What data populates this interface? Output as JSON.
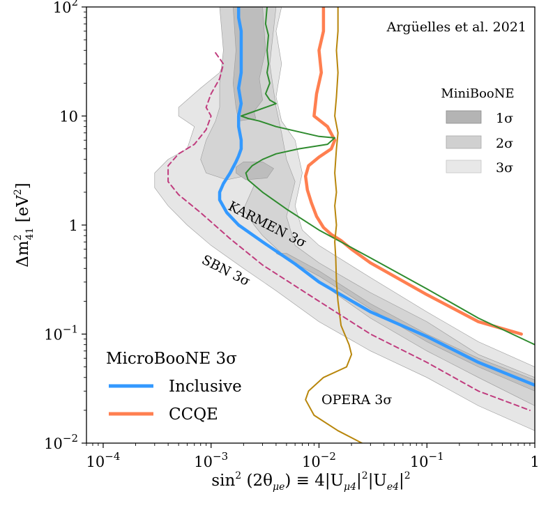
{
  "chart_data": {
    "type": "line",
    "credit": "Argüelles et al. 2021",
    "xlabel": "sin²(2θ_μe) ≡ 4|U_μ4|²|U_e4|²",
    "ylabel": "Δm²₄₁ [eV²]",
    "xscale": "log",
    "yscale": "log",
    "xlim": [
      7e-05,
      1
    ],
    "ylim": [
      0.01,
      100
    ],
    "x_ticks": [
      {
        "value": 0.0001,
        "base": "10",
        "exp": "−4"
      },
      {
        "value": 0.001,
        "base": "10",
        "exp": "−3"
      },
      {
        "value": 0.01,
        "base": "10",
        "exp": "−2"
      },
      {
        "value": 0.1,
        "base": "10",
        "exp": "−1"
      },
      {
        "value": 1,
        "base": "1",
        "exp": ""
      }
    ],
    "y_ticks": [
      {
        "value": 0.01,
        "base": "10",
        "exp": "−2"
      },
      {
        "value": 0.1,
        "base": "10",
        "exp": "−1"
      },
      {
        "value": 1,
        "base": "1",
        "exp": ""
      },
      {
        "value": 10,
        "base": "10",
        "exp": ""
      },
      {
        "value": 100,
        "base": "10",
        "exp": "2"
      }
    ],
    "grid": false,
    "legends": {
      "miniboone": {
        "title": "MiniBooNE",
        "placement": "upper-right",
        "entries": [
          {
            "label": "1σ",
            "color": "#b4b4b4"
          },
          {
            "label": "2σ",
            "color": "#d0d0d0"
          },
          {
            "label": "3σ",
            "color": "#e8e8e8"
          }
        ]
      },
      "microboone": {
        "title": "MicroBooNE 3σ",
        "placement": "lower-left",
        "entries": [
          {
            "label": "Inclusive",
            "color": "#3399ff"
          },
          {
            "label": "CCQE",
            "color": "#ff7f50"
          }
        ]
      }
    },
    "regions": [
      {
        "name": "MiniBooNE 3σ",
        "color": "#e6e6e6",
        "points": [
          [
            0.0018,
            100
          ],
          [
            0.0018,
            80
          ],
          [
            0.0016,
            50
          ],
          [
            0.0012,
            25
          ],
          [
            0.0008,
            18
          ],
          [
            0.0005,
            12
          ],
          [
            0.0005,
            10
          ],
          [
            0.0007,
            8
          ],
          [
            0.0006,
            5
          ],
          [
            0.0004,
            4
          ],
          [
            0.0003,
            3
          ],
          [
            0.0003,
            2.2
          ],
          [
            0.0004,
            1.5
          ],
          [
            0.0006,
            1.0
          ],
          [
            0.001,
            0.65
          ],
          [
            0.002,
            0.4
          ],
          [
            0.004,
            0.25
          ],
          [
            0.01,
            0.13
          ],
          [
            0.03,
            0.07
          ],
          [
            0.1,
            0.04
          ],
          [
            0.3,
            0.022
          ],
          [
            1,
            0.013
          ],
          [
            1,
            0.05
          ],
          [
            0.3,
            0.085
          ],
          [
            0.1,
            0.16
          ],
          [
            0.03,
            0.33
          ],
          [
            0.01,
            0.65
          ],
          [
            0.007,
            0.9
          ],
          [
            0.006,
            1.5
          ],
          [
            0.007,
            3
          ],
          [
            0.006,
            6
          ],
          [
            0.0045,
            9
          ],
          [
            0.004,
            15
          ],
          [
            0.0045,
            30
          ],
          [
            0.004,
            60
          ],
          [
            0.0045,
            100
          ]
        ]
      },
      {
        "name": "MiniBooNE 2σ",
        "color": "#d4d4d4",
        "points": [
          [
            0.0012,
            100
          ],
          [
            0.0013,
            40
          ],
          [
            0.0012,
            20
          ],
          [
            0.0012,
            12
          ],
          [
            0.0011,
            9
          ],
          [
            0.0009,
            6
          ],
          [
            0.0008,
            4
          ],
          [
            0.0009,
            3
          ],
          [
            0.0014,
            2.6
          ],
          [
            0.002,
            2.8
          ],
          [
            0.0025,
            2.3
          ],
          [
            0.002,
            1.4
          ],
          [
            0.0025,
            1.0
          ],
          [
            0.003,
            0.8
          ],
          [
            0.005,
            0.5
          ],
          [
            0.01,
            0.3
          ],
          [
            0.03,
            0.14
          ],
          [
            0.1,
            0.07
          ],
          [
            0.3,
            0.04
          ],
          [
            1,
            0.022
          ],
          [
            1,
            0.04
          ],
          [
            0.3,
            0.065
          ],
          [
            0.1,
            0.13
          ],
          [
            0.03,
            0.24
          ],
          [
            0.01,
            0.45
          ],
          [
            0.006,
            0.65
          ],
          [
            0.005,
            1.2
          ],
          [
            0.006,
            2.5
          ],
          [
            0.005,
            4
          ],
          [
            0.0045,
            7
          ],
          [
            0.004,
            12
          ],
          [
            0.0035,
            30
          ],
          [
            0.004,
            100
          ]
        ]
      },
      {
        "name": "MiniBooNE 1σ",
        "color": "#bdbdbd",
        "points": [
          [
            0.0016,
            100
          ],
          [
            0.0017,
            40
          ],
          [
            0.0016,
            20
          ],
          [
            0.0017,
            12
          ],
          [
            0.0018,
            9
          ],
          [
            0.0026,
            9.5
          ],
          [
            0.0025,
            11
          ],
          [
            0.003,
            14
          ],
          [
            0.0028,
            22
          ],
          [
            0.0032,
            40
          ],
          [
            0.003,
            100
          ]
        ]
      },
      {
        "name": "MiniBooNE 1σ island",
        "color": "#bdbdbd",
        "points": [
          [
            0.0017,
            3.0
          ],
          [
            0.0021,
            2.6
          ],
          [
            0.0033,
            2.7
          ],
          [
            0.0038,
            3.3
          ],
          [
            0.003,
            3.8
          ],
          [
            0.002,
            3.8
          ],
          [
            0.0017,
            3.4
          ]
        ]
      },
      {
        "name": "MiniBooNE 1σ band",
        "color": "#c0c0c0",
        "points": [
          [
            0.004,
            0.55
          ],
          [
            0.01,
            0.34
          ],
          [
            0.03,
            0.17
          ],
          [
            0.1,
            0.085
          ],
          [
            0.3,
            0.05
          ],
          [
            1,
            0.03
          ],
          [
            1,
            0.038
          ],
          [
            0.3,
            0.06
          ],
          [
            0.1,
            0.1
          ],
          [
            0.03,
            0.19
          ],
          [
            0.01,
            0.38
          ],
          [
            0.005,
            0.55
          ]
        ]
      }
    ],
    "series": [
      {
        "name": "Inclusive",
        "color": "#3399ff",
        "style": "solid",
        "x": [
          0.0018,
          0.0018,
          0.0019,
          0.0019,
          0.0019,
          0.0018,
          0.0019,
          0.0018,
          0.0018,
          0.0019,
          0.0019,
          0.0018,
          0.0017,
          0.0015,
          0.0013,
          0.0012,
          0.0012,
          0.0014,
          0.0018,
          0.003,
          0.006,
          0.01,
          0.03,
          0.1,
          0.3,
          1
        ],
        "y": [
          100,
          80,
          60,
          40,
          25,
          18,
          13,
          10,
          8,
          6,
          5,
          4.3,
          3.8,
          3.0,
          2.4,
          2.0,
          1.7,
          1.3,
          1.0,
          0.7,
          0.44,
          0.3,
          0.16,
          0.095,
          0.055,
          0.034
        ]
      },
      {
        "name": "CCQE",
        "color": "#ff7f50",
        "style": "solid",
        "x": [
          0.011,
          0.011,
          0.01,
          0.0105,
          0.0095,
          0.009,
          0.012,
          0.014,
          0.013,
          0.01,
          0.008,
          0.0075,
          0.0078,
          0.0085,
          0.0095,
          0.011,
          0.013,
          0.016,
          0.02,
          0.03,
          0.1,
          0.3,
          0.75
        ],
        "y": [
          100,
          60,
          40,
          25,
          16,
          10,
          8,
          6,
          5,
          4.2,
          3.5,
          2.8,
          2.1,
          1.6,
          1.2,
          0.95,
          0.82,
          0.72,
          0.6,
          0.45,
          0.23,
          0.13,
          0.1
        ]
      },
      {
        "name": "KARMEN 3σ",
        "color": "#2e8b2e",
        "style": "solid",
        "x": [
          0.0033,
          0.0032,
          0.0034,
          0.0033,
          0.0034,
          0.0033,
          0.0035,
          0.0032,
          0.0035,
          0.004,
          0.0032,
          0.0025,
          0.0019,
          0.0022,
          0.0028,
          0.004,
          0.01,
          0.014,
          0.012,
          0.0065,
          0.004,
          0.003,
          0.0024,
          0.0021,
          0.0022,
          0.003,
          0.005,
          0.01,
          0.03,
          0.1,
          0.3,
          1
        ],
        "y": [
          100,
          70,
          55,
          40,
          30,
          25,
          20,
          16,
          14,
          13,
          12,
          11,
          10,
          9.5,
          9,
          8,
          6.5,
          6.3,
          5.5,
          5,
          4.5,
          4,
          3.5,
          3.0,
          2.6,
          2.0,
          1.4,
          0.9,
          0.5,
          0.26,
          0.14,
          0.08
        ]
      },
      {
        "name": "OPERA 3σ",
        "color": "#b8860b",
        "style": "solid",
        "x": [
          0.015,
          0.015,
          0.0145,
          0.015,
          0.0145,
          0.014,
          0.015,
          0.0145,
          0.014,
          0.0145,
          0.014,
          0.0145,
          0.014,
          0.0143,
          0.0145,
          0.015,
          0.016,
          0.019,
          0.02,
          0.018,
          0.011,
          0.008,
          0.0075,
          0.009,
          0.015,
          0.025
        ],
        "y": [
          100,
          60,
          40,
          25,
          15,
          10,
          7,
          5,
          3,
          2,
          1.5,
          1,
          0.7,
          0.5,
          0.3,
          0.2,
          0.12,
          0.08,
          0.065,
          0.05,
          0.04,
          0.03,
          0.025,
          0.018,
          0.013,
          0.01
        ]
      },
      {
        "name": "SBN 3σ",
        "color": "#c03c7e",
        "style": "dashed",
        "x": [
          0.0011,
          0.0013,
          0.0012,
          0.001,
          0.0009,
          0.001,
          0.0009,
          0.0007,
          0.0005,
          0.0004,
          0.0004,
          0.0005,
          0.0008,
          0.0015,
          0.003,
          0.01,
          0.03,
          0.1,
          0.3,
          0.9
        ],
        "y": [
          38,
          30,
          22,
          16,
          12,
          10,
          7.5,
          5.5,
          4.5,
          3.5,
          2.5,
          1.9,
          1.3,
          0.75,
          0.43,
          0.2,
          0.1,
          0.055,
          0.03,
          0.02
        ]
      }
    ],
    "annotations": {
      "karmen": {
        "text": "KARMEN 3σ",
        "color": "#2e8b2e"
      },
      "sbn": {
        "text": "SBN 3σ",
        "color": "#c03c7e"
      },
      "opera": {
        "text": "OPERA 3σ",
        "color": "#b8860b"
      }
    }
  }
}
